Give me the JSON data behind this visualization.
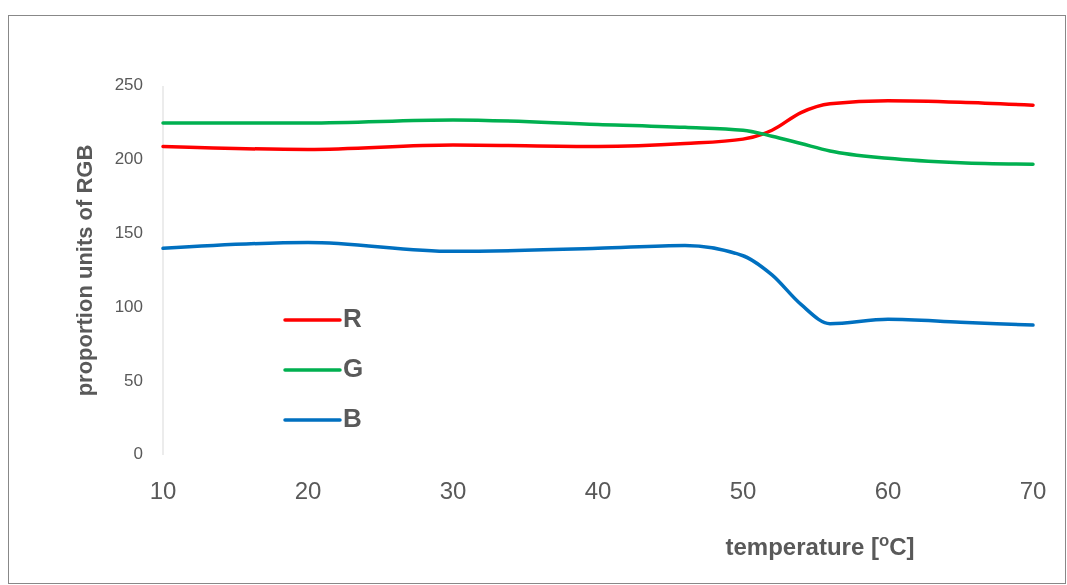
{
  "chart_data": {
    "type": "line",
    "xlabel": "temperature [$^{o}$C]",
    "ylabel": "proportion units of RGB",
    "x": [
      10,
      20,
      30,
      40,
      46,
      50,
      52,
      54,
      56,
      60,
      65,
      70
    ],
    "series": [
      {
        "name": "R",
        "color": "#ff0000",
        "values": [
          209,
          207,
          210,
          209,
          211,
          214,
          220,
          232,
          238,
          240,
          239,
          237
        ]
      },
      {
        "name": "G",
        "color": "#00b050",
        "values": [
          225,
          225,
          227,
          224,
          222,
          220,
          216,
          211,
          206,
          201,
          198,
          197
        ]
      },
      {
        "name": "B",
        "color": "#0070c0",
        "values": [
          140,
          144,
          138,
          140,
          142,
          135,
          122,
          102,
          89,
          92,
          90,
          88
        ]
      }
    ],
    "xlim": [
      10,
      70
    ],
    "xticks": [
      10,
      20,
      30,
      40,
      50,
      60,
      70
    ],
    "ylim": [
      0,
      250
    ],
    "yticks": [
      0,
      50,
      100,
      150,
      200,
      250
    ],
    "grid": false,
    "legend": "bottom left",
    "marker": "none",
    "line_style": "solid"
  }
}
